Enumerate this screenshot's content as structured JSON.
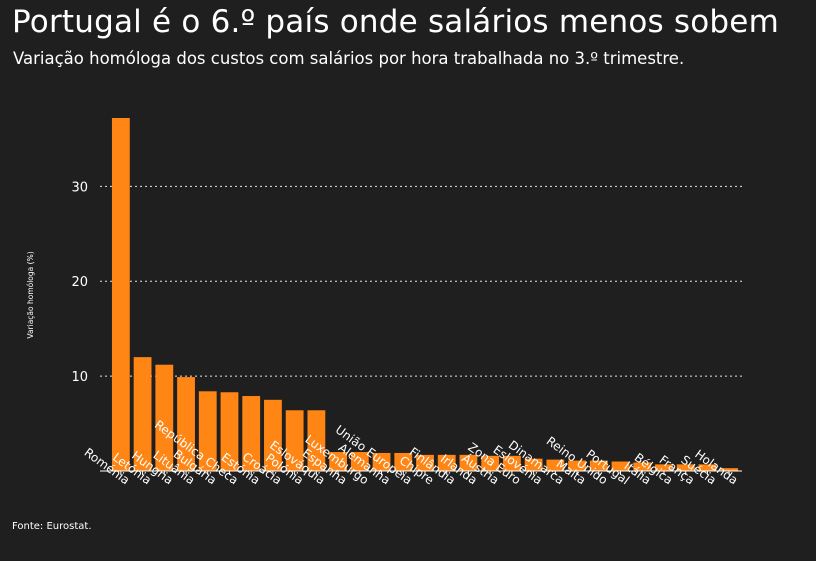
{
  "title": "Portugal é o 6.º país onde salários menos sobem",
  "subtitle": "Variação homóloga dos custos com salários por hora trabalhada no 3.º trimestre.",
  "source": "Fonte: Eurostat.",
  "colors": {
    "background": "#1f1f1f",
    "bar": "#ff8514",
    "text": "#ffffff"
  },
  "chart_data": {
    "type": "bar",
    "ylabel": "Variação homóloga (%)",
    "xlabel": "",
    "ylim": [
      0,
      37.2
    ],
    "yticks": [
      10,
      20,
      30
    ],
    "grid": true,
    "categories": [
      "Roménia",
      "Letónia",
      "Hungria",
      "Lituânia",
      "Bulgária",
      "República Checa",
      "Estónia",
      "Croácia",
      "Polónia",
      "Eslováquia",
      "Espanha",
      "Luxemburgo",
      "Alemanha",
      "União Europeia",
      "Chipre",
      "Finlândia",
      "Irlanda",
      "Áustria",
      "Zona Euro",
      "Eslovénia",
      "Dinamarca",
      "Malta",
      "Reino Unido",
      "Portugal",
      "Itália",
      "Bélgica",
      "França",
      "Suécia",
      "Holanda"
    ],
    "values": [
      37.2,
      12.0,
      11.2,
      9.9,
      8.4,
      8.3,
      7.9,
      7.5,
      6.4,
      6.4,
      2.0,
      2.0,
      1.9,
      1.9,
      1.7,
      1.7,
      1.7,
      1.6,
      1.6,
      1.3,
      1.2,
      1.1,
      1.1,
      1.0,
      0.9,
      0.7,
      0.7,
      0.7,
      0.3
    ]
  }
}
